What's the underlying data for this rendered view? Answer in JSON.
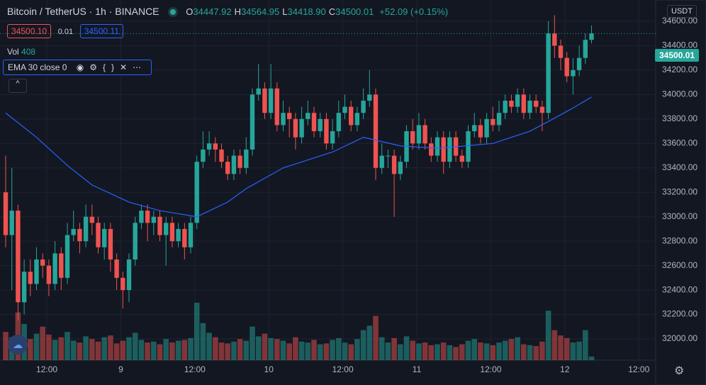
{
  "header": {
    "symbol": "Bitcoin / TetherUS",
    "interval": "1h",
    "exchange": "BINANCE",
    "ohlc": [
      {
        "label": "O",
        "value": "34447.92"
      },
      {
        "label": "H",
        "value": "34564.95"
      },
      {
        "label": "L",
        "value": "34418.90"
      },
      {
        "label": "C",
        "value": "34500.01"
      }
    ],
    "change": "+52.09 (+0.15%)",
    "bid": "34500.10",
    "spread": "0.01",
    "ask": "34500.11",
    "volume_label": "Vol",
    "volume_value": "408",
    "indicator": "EMA 30 close 0",
    "currency": "USDT",
    "last_price": "34500.01"
  },
  "chart_data": {
    "type": "candlestick",
    "up_color": "#26a69a",
    "down_color": "#ef5350",
    "ema_color": "#2962ff",
    "grid": true,
    "xlim": [
      -0.92,
      105.4
    ],
    "ylim": [
      31826,
      34774
    ],
    "yticks": [
      {
        "value": 32000,
        "label": "32000.00"
      },
      {
        "value": 32200,
        "label": "32200.00"
      },
      {
        "value": 32400,
        "label": "32400.00"
      },
      {
        "value": 32600,
        "label": "32600.00"
      },
      {
        "value": 32800,
        "label": "32800.00"
      },
      {
        "value": 33000,
        "label": "33000.00"
      },
      {
        "value": 33200,
        "label": "33200.00"
      },
      {
        "value": 33400,
        "label": "33400.00"
      },
      {
        "value": 33600,
        "label": "33600.00"
      },
      {
        "value": 33800,
        "label": "33800.00"
      },
      {
        "value": 34000,
        "label": "34000.00"
      },
      {
        "value": 34200,
        "label": "34200.00"
      },
      {
        "value": 34400,
        "label": "34400.00"
      },
      {
        "value": 34600,
        "label": "34600.00"
      }
    ],
    "xticks": [
      {
        "value": 6.67,
        "label": "12:00"
      },
      {
        "value": 18.67,
        "label": "9"
      },
      {
        "value": 30.67,
        "label": "12:00"
      },
      {
        "value": 42.67,
        "label": "10"
      },
      {
        "value": 54.67,
        "label": "12:00"
      },
      {
        "value": 66.67,
        "label": "11"
      },
      {
        "value": 78.67,
        "label": "12:00"
      },
      {
        "value": 90.67,
        "label": "12"
      },
      {
        "value": 102.67,
        "label": "12:00"
      }
    ],
    "last": 34500.01,
    "open": [
      33200,
      32850,
      33050,
      32300,
      32550,
      32450,
      32650,
      32600,
      32450,
      32700,
      32500,
      32850,
      32900,
      32800,
      33000,
      32950,
      32750,
      32900,
      32650,
      32500,
      32400,
      32650,
      32950,
      33050,
      32950,
      33000,
      32850,
      32950,
      32800,
      32900,
      32750,
      32950,
      33450,
      33550,
      33600,
      33550,
      33450,
      33350,
      33500,
      33400,
      33550,
      34000,
      34050,
      33850,
      34050,
      33750,
      33850,
      33800,
      33650,
      33800,
      33850,
      33700,
      33800,
      33600,
      33700,
      33850,
      33900,
      33750,
      33850,
      33950,
      34000,
      33400,
      33500,
      33500,
      33350,
      33450,
      33700,
      33600,
      33750,
      33600,
      33500,
      33650,
      33450,
      33650,
      33500,
      33450,
      33700,
      33750,
      33650,
      33800,
      33750,
      33850,
      33950,
      33900,
      34000,
      33850,
      33950,
      33900,
      33850,
      34500,
      34400,
      34300,
      34150,
      34200,
      34300,
      34447.92
    ],
    "high": [
      33500,
      33400,
      33100,
      32650,
      32650,
      32750,
      32700,
      32650,
      32800,
      32750,
      32950,
      33050,
      32950,
      33100,
      33100,
      33000,
      32950,
      32950,
      32700,
      32550,
      32700,
      33000,
      33100,
      33100,
      33050,
      33050,
      33000,
      33000,
      32950,
      32950,
      33000,
      33500,
      33700,
      33700,
      33650,
      33600,
      33500,
      33550,
      33550,
      33650,
      34050,
      34250,
      34100,
      34250,
      34100,
      33950,
      33900,
      33850,
      33900,
      33950,
      33900,
      33850,
      33850,
      33800,
      33950,
      34000,
      33950,
      33900,
      34050,
      34200,
      34050,
      33600,
      33550,
      33550,
      33500,
      33750,
      33800,
      33850,
      33800,
      33650,
      33700,
      33700,
      33700,
      33700,
      33550,
      33750,
      33850,
      33800,
      33850,
      33900,
      33950,
      34000,
      34000,
      34050,
      34050,
      34000,
      34000,
      33950,
      34600,
      34650,
      34450,
      34350,
      34300,
      34400,
      34500,
      34564.95
    ],
    "low": [
      32750,
      32400,
      32150,
      32200,
      32350,
      32400,
      32500,
      32350,
      32400,
      32400,
      32450,
      32800,
      32700,
      32750,
      32850,
      32700,
      32650,
      32550,
      32400,
      32250,
      32300,
      32600,
      32900,
      32800,
      32850,
      32800,
      32600,
      32750,
      32750,
      32650,
      32700,
      32900,
      33400,
      33500,
      33450,
      33400,
      33300,
      33300,
      33350,
      33350,
      33500,
      33950,
      33800,
      33800,
      33700,
      33700,
      33650,
      33550,
      33600,
      33750,
      33650,
      33650,
      33550,
      33550,
      33650,
      33800,
      33700,
      33700,
      33800,
      33900,
      33300,
      33350,
      33400,
      33000,
      33300,
      33400,
      33550,
      33550,
      33550,
      33450,
      33450,
      33350,
      33400,
      33450,
      33400,
      33400,
      33650,
      33600,
      33600,
      33700,
      33700,
      33800,
      33850,
      33850,
      33800,
      33800,
      33850,
      33700,
      33800,
      34300,
      34200,
      34100,
      34000,
      34150,
      34250,
      34418.9
    ],
    "close": [
      32850,
      33050,
      32300,
      32550,
      32450,
      32650,
      32600,
      32450,
      32700,
      32500,
      32850,
      32900,
      32800,
      33000,
      32950,
      32750,
      32900,
      32650,
      32500,
      32400,
      32650,
      32950,
      33050,
      32950,
      33000,
      32850,
      32950,
      32800,
      32900,
      32750,
      32950,
      33450,
      33550,
      33600,
      33550,
      33450,
      33350,
      33500,
      33400,
      33550,
      34000,
      34050,
      33850,
      34050,
      33750,
      33850,
      33800,
      33650,
      33800,
      33850,
      33700,
      33800,
      33600,
      33700,
      33850,
      33900,
      33750,
      33850,
      33950,
      34000,
      33400,
      33500,
      33500,
      33350,
      33450,
      33700,
      33600,
      33750,
      33600,
      33500,
      33650,
      33450,
      33650,
      33500,
      33450,
      33700,
      33750,
      33650,
      33800,
      33750,
      33850,
      33950,
      33900,
      34000,
      33850,
      33950,
      33900,
      33850,
      34500,
      34400,
      34300,
      34150,
      34200,
      34300,
      34447.92,
      34500.01
    ],
    "volume": [
      3200,
      2600,
      5400,
      4100,
      2400,
      3000,
      3800,
      2900,
      2300,
      2600,
      3200,
      2200,
      2000,
      2700,
      2400,
      2100,
      2600,
      2800,
      1900,
      2200,
      2600,
      3100,
      2300,
      2000,
      2100,
      1800,
      2400,
      2000,
      2200,
      2300,
      2500,
      6500,
      4200,
      3100,
      2600,
      2000,
      1900,
      2100,
      2400,
      2200,
      3800,
      2700,
      3000,
      2500,
      2400,
      2200,
      1900,
      2600,
      2100,
      2000,
      2300,
      1800,
      1900,
      2300,
      2500,
      2000,
      1800,
      2400,
      3400,
      3900,
      5000,
      2600,
      2000,
      2500,
      1800,
      2700,
      2200,
      1900,
      2000,
      1700,
      1800,
      2000,
      1700,
      1500,
      1800,
      2200,
      2400,
      2000,
      1900,
      1700,
      2000,
      2200,
      2400,
      2600,
      1800,
      1700,
      1600,
      2100,
      5600,
      3400,
      2800,
      2500,
      2000,
      2100,
      3400,
      408
    ],
    "ema": {
      "x": [
        0,
        5,
        10,
        14,
        20,
        25,
        31,
        36,
        39,
        45,
        53,
        58,
        64,
        70,
        79,
        85,
        88,
        92,
        95
      ],
      "values": [
        33850,
        33650,
        33420,
        33260,
        33120,
        33050,
        33000,
        33120,
        33230,
        33400,
        33530,
        33650,
        33580,
        33560,
        33600,
        33700,
        33780,
        33890,
        33980
      ]
    }
  }
}
